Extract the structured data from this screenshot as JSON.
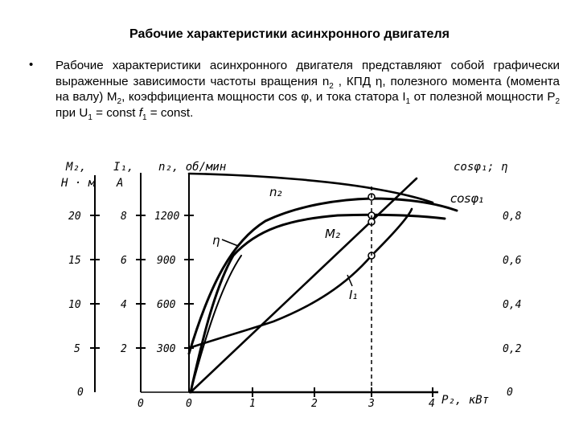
{
  "slide": {
    "title": "Рабочие характеристики асинхронного двигателя",
    "bullet_marker": "•",
    "bullet": {
      "p1": "Рабочие характеристики асинхронного двигателя представляют собой графически выраженные зависимости частоты вращения n",
      "s1": "2",
      "p2": " , КПД η, полезного момента (момента на валу) М",
      "s2": "2",
      "p3": ", коэффициента мощности cos φ, и тока статора I",
      "s3": "1",
      "p4": " от полезной мощности Р",
      "s4": "2",
      "p5": " при U",
      "s5": "1",
      "p6": " = const ",
      "p7": "f",
      "s7": "1",
      "p8": " = const."
    }
  },
  "figure": {
    "axis_headers": {
      "m2": "M₂,",
      "m2_unit": "Н · м",
      "i1": "I₁,",
      "i1_unit": "А",
      "n2": "n₂, об/мин",
      "cos_eta": "cosφ₁; η",
      "p2": "P₂, кВт"
    },
    "scales": {
      "m2_ticks": [
        "20",
        "15",
        "10",
        "5",
        "0"
      ],
      "i1_ticks": [
        "8",
        "6",
        "4",
        "2",
        "0"
      ],
      "n2_ticks": [
        "1200",
        "900",
        "600",
        "300",
        "0"
      ],
      "cos_eta_ticks": [
        "0,8",
        "0,6",
        "0,4",
        "0,2",
        "0"
      ],
      "p2_ticks": [
        "1",
        "2",
        "3",
        "4"
      ]
    },
    "curve_labels": {
      "n2": "n₂",
      "cos": "cosφ₁",
      "eta": "η",
      "m2": "M₂",
      "i1": "I₁"
    }
  }
}
